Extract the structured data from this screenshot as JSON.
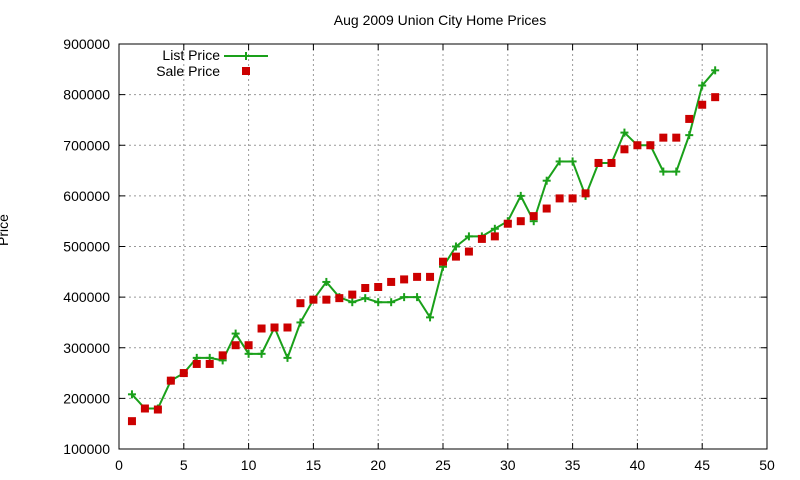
{
  "chart_data": {
    "type": "line",
    "title": "Aug 2009 Union City Home Prices",
    "xlabel": "",
    "ylabel": "Price",
    "xlim": [
      0,
      50
    ],
    "ylim": [
      100000,
      900000
    ],
    "x_ticks": [
      0,
      5,
      10,
      15,
      20,
      25,
      30,
      35,
      40,
      45,
      50
    ],
    "y_ticks": [
      100000,
      200000,
      300000,
      400000,
      500000,
      600000,
      700000,
      800000,
      900000
    ],
    "grid": true,
    "legend_position": "top-left",
    "series": [
      {
        "name": "List Price",
        "style": "line-with-plus-markers",
        "color": "#1aa01a",
        "x": [
          1,
          2,
          3,
          4,
          5,
          6,
          7,
          8,
          9,
          10,
          11,
          12,
          13,
          14,
          15,
          16,
          17,
          18,
          19,
          20,
          21,
          22,
          23,
          24,
          25,
          26,
          27,
          28,
          29,
          30,
          31,
          32,
          33,
          34,
          35,
          36,
          37,
          38,
          39,
          40,
          41,
          42,
          43,
          44,
          45,
          46
        ],
        "values": [
          208000,
          180000,
          180000,
          235000,
          250000,
          280000,
          280000,
          275000,
          328000,
          288000,
          288000,
          340000,
          280000,
          350000,
          395000,
          430000,
          400000,
          390000,
          398000,
          390000,
          390000,
          400000,
          400000,
          360000,
          460000,
          500000,
          520000,
          520000,
          535000,
          550000,
          600000,
          550000,
          630000,
          668000,
          668000,
          600000,
          665000,
          665000,
          725000,
          700000,
          700000,
          648000,
          648000,
          720000,
          818000,
          848000
        ]
      },
      {
        "name": "Sale Price",
        "style": "square-markers",
        "color": "#cc0000",
        "x": [
          1,
          2,
          3,
          4,
          5,
          6,
          7,
          8,
          9,
          10,
          11,
          12,
          13,
          14,
          15,
          16,
          17,
          18,
          19,
          20,
          21,
          22,
          23,
          24,
          25,
          26,
          27,
          28,
          29,
          30,
          31,
          32,
          33,
          34,
          35,
          36,
          37,
          38,
          39,
          40,
          41,
          42,
          43,
          44,
          45,
          46
        ],
        "values": [
          155000,
          180000,
          178000,
          235000,
          250000,
          268000,
          268000,
          285000,
          305000,
          305000,
          338000,
          340000,
          340000,
          388000,
          395000,
          395000,
          398000,
          405000,
          418000,
          420000,
          430000,
          435000,
          440000,
          440000,
          470000,
          480000,
          490000,
          515000,
          520000,
          545000,
          550000,
          560000,
          575000,
          595000,
          595000,
          605000,
          665000,
          665000,
          692000,
          700000,
          700000,
          715000,
          715000,
          752000,
          780000,
          795000
        ]
      }
    ]
  }
}
